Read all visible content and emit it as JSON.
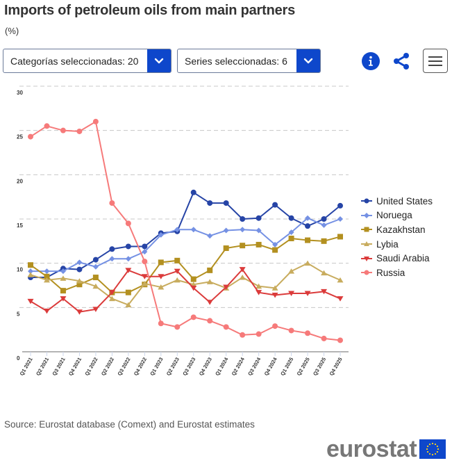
{
  "header": {
    "title": "Imports of petroleum oils from main partners",
    "subtitle": "(%)"
  },
  "toolbar": {
    "categories_dropdown": "Categorías seleccionadas: 20",
    "series_dropdown": "Series seleccionadas: 6",
    "info_icon": "info-icon",
    "share_icon": "share-icon",
    "menu_icon": "hamburger-menu-icon"
  },
  "footer": {
    "source": "Source: Eurostat database (Comext) and Eurostat estimates",
    "logo_text": "eurostat"
  },
  "chart_data": {
    "type": "line",
    "title": "Imports of petroleum oils from main partners",
    "ylabel": "(%)",
    "xlabel": "",
    "ylim": [
      0,
      30
    ],
    "yticks": [
      0,
      5,
      10,
      15,
      20,
      25,
      30
    ],
    "grid": true,
    "legend_position": "right",
    "categories": [
      "Q1 2021",
      "Q2 2021",
      "Q3 2021",
      "Q4 2021",
      "Q1 2022",
      "Q2 2022",
      "Q3 2022",
      "Q4 2022",
      "Q1 2023",
      "Q2 2023",
      "Q3 2023",
      "Q4 2023",
      "Q1 2024",
      "Q2 2024",
      "Q3 2024",
      "Q4 2024",
      "Q1 2025",
      "Q2 2025",
      "Q3 2025",
      "Q4 2025"
    ],
    "series": [
      {
        "name": "United States",
        "color": "#2644a6",
        "marker": "circle",
        "values": [
          8.4,
          8.4,
          9.4,
          9.3,
          10.4,
          11.6,
          11.9,
          11.9,
          13.4,
          13.6,
          18.0,
          16.8,
          16.8,
          15.0,
          15.1,
          16.6,
          15.1,
          14.2,
          15.0,
          16.5
        ]
      },
      {
        "name": "Noruega",
        "color": "#7591e4",
        "marker": "diamond",
        "values": [
          9.1,
          9.1,
          9.1,
          10.1,
          9.6,
          10.5,
          10.5,
          11.3,
          13.2,
          13.8,
          13.8,
          13.1,
          13.7,
          13.8,
          13.7,
          12.1,
          13.5,
          15.1,
          14.3,
          15.0
        ]
      },
      {
        "name": "Kazakhstan",
        "color": "#b39020",
        "marker": "square",
        "values": [
          9.8,
          8.5,
          6.9,
          7.6,
          8.4,
          6.7,
          6.7,
          7.6,
          10.1,
          10.3,
          8.2,
          9.2,
          11.7,
          12.0,
          12.1,
          11.5,
          12.8,
          12.6,
          12.5,
          13.0
        ]
      },
      {
        "name": "Lybia",
        "color": "#c8ac5e",
        "marker": "triangle",
        "values": [
          8.7,
          8.1,
          8.3,
          8.0,
          7.4,
          6.0,
          5.3,
          7.7,
          7.3,
          8.1,
          7.6,
          7.9,
          7.2,
          8.4,
          7.4,
          7.2,
          9.1,
          10.0,
          8.9,
          8.1
        ]
      },
      {
        "name": "Saudi Arabia",
        "color": "#db3b3b",
        "marker": "triangle-down",
        "values": [
          5.7,
          4.6,
          6.0,
          4.5,
          4.8,
          6.7,
          9.2,
          8.5,
          8.5,
          9.1,
          7.2,
          5.6,
          7.3,
          9.3,
          6.7,
          6.4,
          6.6,
          6.6,
          6.8,
          6.0
        ]
      },
      {
        "name": "Russia",
        "color": "#f67a7a",
        "marker": "circle",
        "values": [
          24.3,
          25.5,
          25.0,
          24.9,
          26.0,
          16.8,
          14.5,
          10.2,
          3.2,
          2.8,
          3.9,
          3.5,
          2.8,
          1.9,
          2.0,
          2.9,
          2.4,
          2.1,
          1.5,
          1.3
        ]
      }
    ]
  }
}
